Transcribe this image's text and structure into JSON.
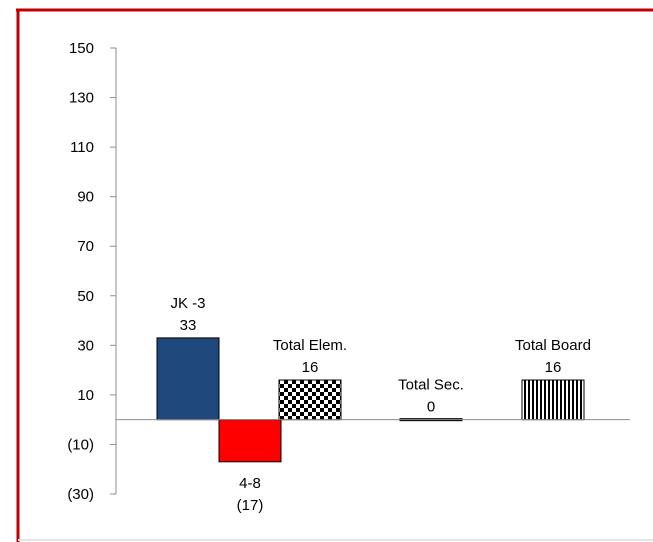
{
  "chart_data": {
    "type": "bar",
    "title": "",
    "xlabel": "",
    "ylabel": "",
    "ylim": [
      -30,
      150
    ],
    "yticks": [
      -30,
      -10,
      10,
      30,
      50,
      70,
      90,
      110,
      130,
      150
    ],
    "ytick_labels": [
      "(30)",
      "(10)",
      "10",
      "30",
      "50",
      "70",
      "90",
      "110",
      "130",
      "150"
    ],
    "grid": false,
    "legend": "none",
    "categories": [
      "JK -3",
      "4-8",
      "Total Elem.",
      "Total Sec.",
      "Total Board"
    ],
    "values": [
      33,
      -17,
      16,
      0,
      16
    ],
    "value_labels": [
      "33",
      "(17)",
      "16",
      "0",
      "16"
    ],
    "bar_styles": [
      {
        "fill": "#1f497d",
        "pattern": "solid"
      },
      {
        "fill": "#ff0000",
        "pattern": "solid"
      },
      {
        "fill": "#000000",
        "pattern": "checkerboard"
      },
      {
        "fill": "#000000",
        "pattern": "solid"
      },
      {
        "fill": "#000000",
        "pattern": "vertical-lines"
      }
    ]
  },
  "colors": {
    "border": "#c00000",
    "axis": "#8c8c8c",
    "bar_outline": "#000000"
  }
}
